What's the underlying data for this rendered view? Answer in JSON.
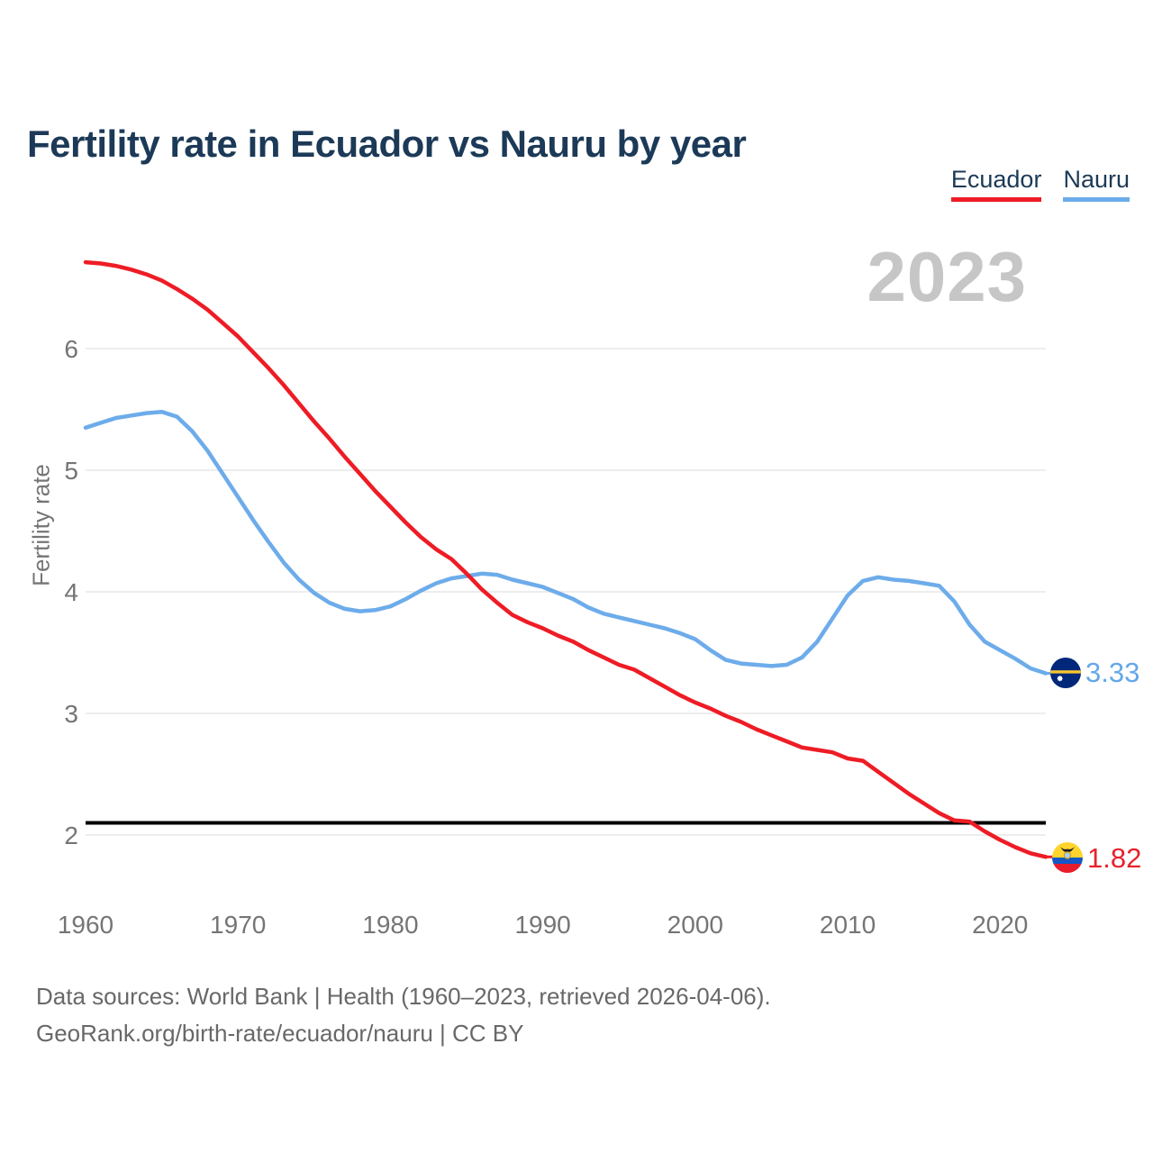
{
  "header": {
    "title": "Fertility rate in Ecuador vs Nauru by year"
  },
  "legend": {
    "items": [
      {
        "label": "Ecuador",
        "color": "#ee1c25"
      },
      {
        "label": "Nauru",
        "color": "#6dacea"
      }
    ]
  },
  "watermark": {
    "year": "2023"
  },
  "chart_data": {
    "type": "line",
    "title": "Fertility rate in Ecuador vs Nauru by year",
    "xlabel": "",
    "ylabel": "Fertility rate",
    "x": [
      1960,
      1961,
      1962,
      1963,
      1964,
      1965,
      1966,
      1967,
      1968,
      1969,
      1970,
      1971,
      1972,
      1973,
      1974,
      1975,
      1976,
      1977,
      1978,
      1979,
      1980,
      1981,
      1982,
      1983,
      1984,
      1985,
      1986,
      1987,
      1988,
      1989,
      1990,
      1991,
      1992,
      1993,
      1994,
      1995,
      1996,
      1997,
      1998,
      1999,
      2000,
      2001,
      2002,
      2003,
      2004,
      2005,
      2006,
      2007,
      2008,
      2009,
      2010,
      2011,
      2012,
      2013,
      2014,
      2015,
      2016,
      2017,
      2018,
      2019,
      2020,
      2021,
      2022,
      2023
    ],
    "series": [
      {
        "name": "Ecuador",
        "color": "#ee1c25",
        "end_label": "1.82",
        "end_value": 1.82,
        "values": [
          6.71,
          6.7,
          6.68,
          6.65,
          6.61,
          6.56,
          6.49,
          6.41,
          6.32,
          6.21,
          6.1,
          5.97,
          5.84,
          5.7,
          5.55,
          5.4,
          5.26,
          5.11,
          4.97,
          4.83,
          4.7,
          4.57,
          4.45,
          4.35,
          4.27,
          4.15,
          4.02,
          3.91,
          3.81,
          3.75,
          3.7,
          3.64,
          3.59,
          3.52,
          3.46,
          3.4,
          3.36,
          3.29,
          3.22,
          3.15,
          3.09,
          3.04,
          2.98,
          2.93,
          2.87,
          2.82,
          2.77,
          2.72,
          2.7,
          2.68,
          2.63,
          2.61,
          2.52,
          2.43,
          2.34,
          2.26,
          2.18,
          2.12,
          2.11,
          2.03,
          1.96,
          1.9,
          1.85,
          1.82
        ]
      },
      {
        "name": "Nauru",
        "color": "#6dacea",
        "end_label": "3.33",
        "end_value": 3.33,
        "values": [
          5.35,
          5.39,
          5.43,
          5.45,
          5.47,
          5.48,
          5.44,
          5.32,
          5.16,
          4.97,
          4.78,
          4.59,
          4.41,
          4.24,
          4.1,
          3.99,
          3.91,
          3.86,
          3.84,
          3.85,
          3.88,
          3.94,
          4.01,
          4.07,
          4.11,
          4.13,
          4.15,
          4.14,
          4.1,
          4.07,
          4.04,
          3.99,
          3.94,
          3.87,
          3.82,
          3.79,
          3.76,
          3.73,
          3.7,
          3.66,
          3.61,
          3.52,
          3.44,
          3.41,
          3.4,
          3.39,
          3.4,
          3.46,
          3.59,
          3.78,
          3.97,
          4.09,
          4.12,
          4.1,
          4.09,
          4.07,
          4.05,
          3.92,
          3.73,
          3.59,
          3.52,
          3.45,
          3.37,
          3.33
        ]
      }
    ],
    "xticks": [
      1960,
      1970,
      1980,
      1990,
      2000,
      2010,
      2020
    ],
    "yticks": [
      2,
      3,
      4,
      5,
      6
    ],
    "xlim": [
      1960,
      2023
    ],
    "ylim": [
      1.7,
      6.9
    ],
    "grid": true,
    "legend_position": "top-right",
    "reference_line": {
      "value": 2.1,
      "color": "#000000"
    }
  },
  "end_markers": {
    "nauru": {
      "value_label": "3.33",
      "icon": "nauru-flag-icon"
    },
    "ecuador": {
      "value_label": "1.82",
      "icon": "ecuador-flag-icon"
    }
  },
  "footer": {
    "line1": "Data sources: World Bank | Health (1960–2023, retrieved 2026-04-06).",
    "line2": "GeoRank.org/birth-rate/ecuador/nauru | CC BY"
  },
  "colors": {
    "title": "#1c3a57",
    "axis_text": "#757575",
    "gridline": "#ededed",
    "watermark": "#c6c6c6",
    "footer_text": "#686868"
  }
}
